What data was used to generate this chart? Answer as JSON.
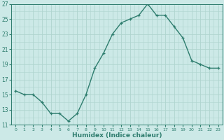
{
  "x": [
    0,
    1,
    2,
    3,
    4,
    5,
    6,
    7,
    8,
    9,
    10,
    11,
    12,
    13,
    14,
    15,
    16,
    17,
    18,
    19,
    20,
    21,
    22,
    23
  ],
  "y": [
    15.5,
    15.0,
    15.0,
    14.0,
    12.5,
    12.5,
    11.5,
    12.5,
    15.0,
    18.5,
    20.5,
    23.0,
    24.5,
    25.0,
    25.5,
    27.0,
    25.5,
    25.5,
    24.0,
    22.5,
    19.5,
    19.0,
    18.5,
    18.5
  ],
  "xlabel": "Humidex (Indice chaleur)",
  "line_color": "#2e7d6e",
  "marker": "+",
  "bg_color": "#cce9e7",
  "grid_color_major": "#afd4cf",
  "ylim": [
    11,
    27
  ],
  "xlim": [
    -0.5,
    23.5
  ],
  "yticks": [
    11,
    13,
    15,
    17,
    19,
    21,
    23,
    25,
    27
  ],
  "xticks": [
    0,
    1,
    2,
    3,
    4,
    5,
    6,
    7,
    8,
    9,
    10,
    11,
    12,
    13,
    14,
    15,
    16,
    17,
    18,
    19,
    20,
    21,
    22,
    23
  ],
  "xlabel_fontsize": 6.5,
  "ylabel_fontsize": 6,
  "xlabel_fontweight": "bold"
}
